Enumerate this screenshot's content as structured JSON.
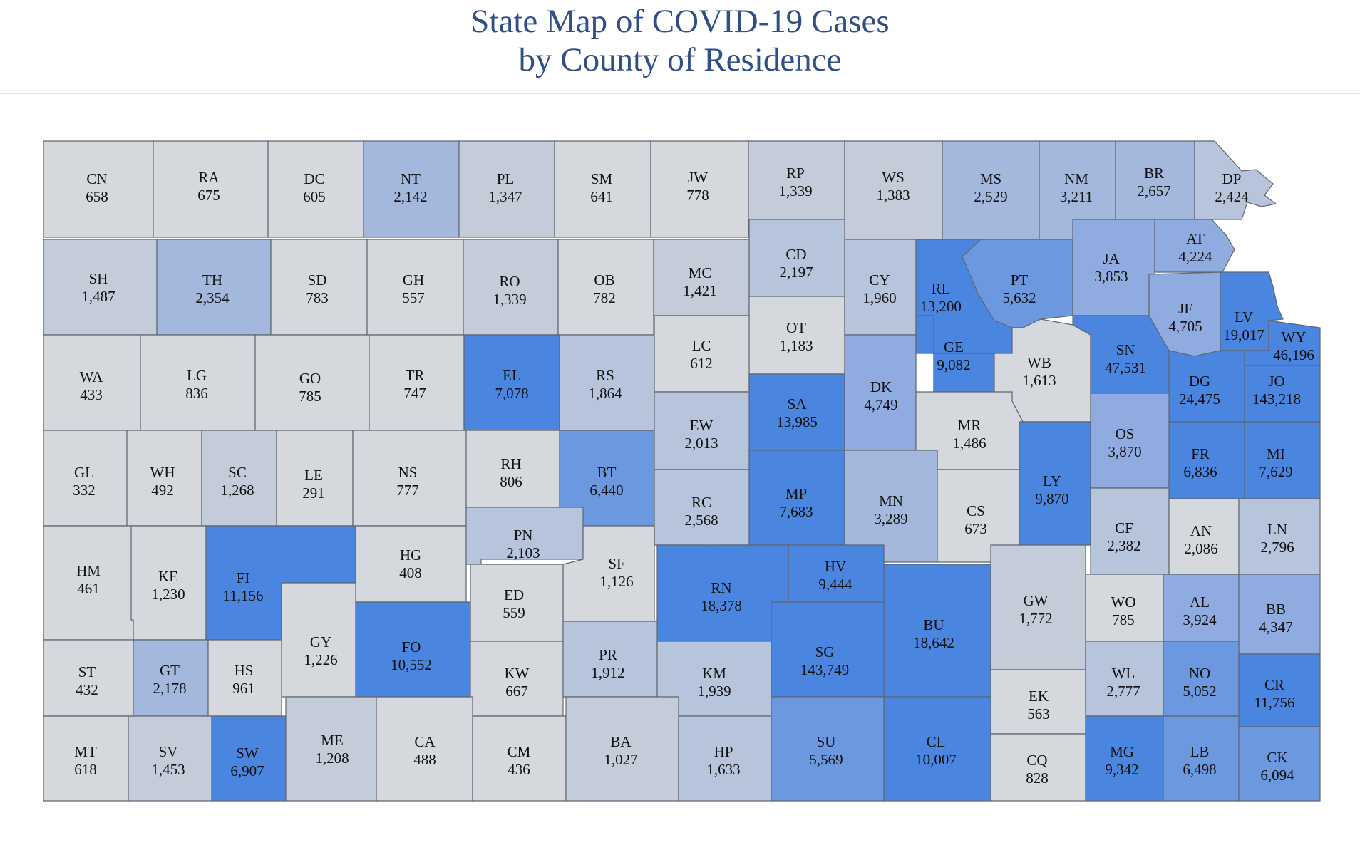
{
  "title": {
    "line1": "State Map of COVID-19 Cases",
    "line2": "by County of Residence"
  },
  "palette": {
    "lightest": "#d5d8dd",
    "light": "#c5ccd9",
    "pale_blue": "#b6c4dc",
    "soft_blue": "#a3b8dc",
    "mid_blue": "#8fabe0",
    "strong_blue": "#6c98df",
    "deep_blue": "#4a85e0",
    "border": "#5f6670"
  },
  "counties": [
    {
      "code": "CN",
      "value": "658",
      "shade": "lightest"
    },
    {
      "code": "RA",
      "value": "675",
      "shade": "lightest"
    },
    {
      "code": "DC",
      "value": "605",
      "shade": "lightest"
    },
    {
      "code": "NT",
      "value": "2,142",
      "shade": "soft_blue"
    },
    {
      "code": "PL",
      "value": "1,347",
      "shade": "light"
    },
    {
      "code": "SM",
      "value": "641",
      "shade": "lightest"
    },
    {
      "code": "JW",
      "value": "778",
      "shade": "lightest"
    },
    {
      "code": "RP",
      "value": "1,339",
      "shade": "light"
    },
    {
      "code": "WS",
      "value": "1,383",
      "shade": "light"
    },
    {
      "code": "MS",
      "value": "2,529",
      "shade": "soft_blue"
    },
    {
      "code": "NM",
      "value": "3,211",
      "shade": "soft_blue"
    },
    {
      "code": "BR",
      "value": "2,657",
      "shade": "soft_blue"
    },
    {
      "code": "DP",
      "value": "2,424",
      "shade": "pale_blue"
    },
    {
      "code": "SH",
      "value": "1,487",
      "shade": "light"
    },
    {
      "code": "TH",
      "value": "2,354",
      "shade": "soft_blue"
    },
    {
      "code": "SD",
      "value": "783",
      "shade": "lightest"
    },
    {
      "code": "GH",
      "value": "557",
      "shade": "lightest"
    },
    {
      "code": "RO",
      "value": "1,339",
      "shade": "light"
    },
    {
      "code": "OB",
      "value": "782",
      "shade": "lightest"
    },
    {
      "code": "MC",
      "value": "1,421",
      "shade": "light"
    },
    {
      "code": "CD",
      "value": "2,197",
      "shade": "pale_blue"
    },
    {
      "code": "OT",
      "value": "1,183",
      "shade": "lightest"
    },
    {
      "code": "CY",
      "value": "1,960",
      "shade": "pale_blue"
    },
    {
      "code": "RL",
      "value": "13,200",
      "shade": "deep_blue"
    },
    {
      "code": "PT",
      "value": "5,632",
      "shade": "strong_blue"
    },
    {
      "code": "JA",
      "value": "3,853",
      "shade": "mid_blue"
    },
    {
      "code": "AT",
      "value": "4,224",
      "shade": "mid_blue"
    },
    {
      "code": "JF",
      "value": "4,705",
      "shade": "mid_blue"
    },
    {
      "code": "LV",
      "value": "19,017",
      "shade": "deep_blue"
    },
    {
      "code": "WY",
      "value": "46,196",
      "shade": "deep_blue"
    },
    {
      "code": "WA",
      "value": "433",
      "shade": "lightest"
    },
    {
      "code": "LG",
      "value": "836",
      "shade": "lightest"
    },
    {
      "code": "GO",
      "value": "785",
      "shade": "lightest"
    },
    {
      "code": "TR",
      "value": "747",
      "shade": "lightest"
    },
    {
      "code": "EL",
      "value": "7,078",
      "shade": "deep_blue"
    },
    {
      "code": "RS",
      "value": "1,864",
      "shade": "pale_blue"
    },
    {
      "code": "LC",
      "value": "612",
      "shade": "lightest"
    },
    {
      "code": "SA",
      "value": "13,985",
      "shade": "deep_blue"
    },
    {
      "code": "DK",
      "value": "4,749",
      "shade": "mid_blue"
    },
    {
      "code": "GE",
      "value": "9,082",
      "shade": "deep_blue"
    },
    {
      "code": "WB",
      "value": "1,613",
      "shade": "lightest"
    },
    {
      "code": "SN",
      "value": "47,531",
      "shade": "deep_blue"
    },
    {
      "code": "DG",
      "value": "24,475",
      "shade": "deep_blue"
    },
    {
      "code": "JO",
      "value": "143,218",
      "shade": "deep_blue"
    },
    {
      "code": "GL",
      "value": "332",
      "shade": "lightest"
    },
    {
      "code": "WH",
      "value": "492",
      "shade": "lightest"
    },
    {
      "code": "SC",
      "value": "1,268",
      "shade": "light"
    },
    {
      "code": "LE",
      "value": "291",
      "shade": "lightest"
    },
    {
      "code": "NS",
      "value": "777",
      "shade": "lightest"
    },
    {
      "code": "RH",
      "value": "806",
      "shade": "lightest"
    },
    {
      "code": "BT",
      "value": "6,440",
      "shade": "strong_blue"
    },
    {
      "code": "EW",
      "value": "2,013",
      "shade": "pale_blue"
    },
    {
      "code": "MR",
      "value": "1,486",
      "shade": "lightest"
    },
    {
      "code": "OS",
      "value": "3,870",
      "shade": "mid_blue"
    },
    {
      "code": "FR",
      "value": "6,836",
      "shade": "deep_blue"
    },
    {
      "code": "MI",
      "value": "7,629",
      "shade": "deep_blue"
    },
    {
      "code": "RC",
      "value": "2,568",
      "shade": "pale_blue"
    },
    {
      "code": "MP",
      "value": "7,683",
      "shade": "deep_blue"
    },
    {
      "code": "MN",
      "value": "3,289",
      "shade": "soft_blue"
    },
    {
      "code": "CS",
      "value": "673",
      "shade": "lightest"
    },
    {
      "code": "LY",
      "value": "9,870",
      "shade": "deep_blue"
    },
    {
      "code": "CF",
      "value": "2,382",
      "shade": "pale_blue"
    },
    {
      "code": "AN",
      "value": "2,086",
      "shade": "lightest"
    },
    {
      "code": "LN",
      "value": "2,796",
      "shade": "pale_blue"
    },
    {
      "code": "HM",
      "value": "461",
      "shade": "lightest"
    },
    {
      "code": "KE",
      "value": "1,230",
      "shade": "lightest"
    },
    {
      "code": "FI",
      "value": "11,156",
      "shade": "deep_blue"
    },
    {
      "code": "HG",
      "value": "408",
      "shade": "lightest"
    },
    {
      "code": "PN",
      "value": "2,103",
      "shade": "pale_blue"
    },
    {
      "code": "SF",
      "value": "1,126",
      "shade": "lightest"
    },
    {
      "code": "ED",
      "value": "559",
      "shade": "lightest"
    },
    {
      "code": "RN",
      "value": "18,378",
      "shade": "deep_blue"
    },
    {
      "code": "HV",
      "value": "9,444",
      "shade": "deep_blue"
    },
    {
      "code": "BU",
      "value": "18,642",
      "shade": "deep_blue"
    },
    {
      "code": "GW",
      "value": "1,772",
      "shade": "light"
    },
    {
      "code": "WO",
      "value": "785",
      "shade": "lightest"
    },
    {
      "code": "AL",
      "value": "3,924",
      "shade": "mid_blue"
    },
    {
      "code": "BB",
      "value": "4,347",
      "shade": "mid_blue"
    },
    {
      "code": "GY",
      "value": "1,226",
      "shade": "lightest"
    },
    {
      "code": "FO",
      "value": "10,552",
      "shade": "deep_blue"
    },
    {
      "code": "SG",
      "value": "143,749",
      "shade": "deep_blue"
    },
    {
      "code": "ST",
      "value": "432",
      "shade": "lightest"
    },
    {
      "code": "GT",
      "value": "2,178",
      "shade": "soft_blue"
    },
    {
      "code": "HS",
      "value": "961",
      "shade": "lightest"
    },
    {
      "code": "KW",
      "value": "667",
      "shade": "lightest"
    },
    {
      "code": "PR",
      "value": "1,912",
      "shade": "pale_blue"
    },
    {
      "code": "KM",
      "value": "1,939",
      "shade": "pale_blue"
    },
    {
      "code": "EK",
      "value": "563",
      "shade": "lightest"
    },
    {
      "code": "WL",
      "value": "2,777",
      "shade": "pale_blue"
    },
    {
      "code": "NO",
      "value": "5,052",
      "shade": "strong_blue"
    },
    {
      "code": "CR",
      "value": "11,756",
      "shade": "deep_blue"
    },
    {
      "code": "MT",
      "value": "618",
      "shade": "lightest"
    },
    {
      "code": "SV",
      "value": "1,453",
      "shade": "light"
    },
    {
      "code": "SW",
      "value": "6,907",
      "shade": "deep_blue"
    },
    {
      "code": "ME",
      "value": "1,208",
      "shade": "light"
    },
    {
      "code": "CA",
      "value": "488",
      "shade": "lightest"
    },
    {
      "code": "CM",
      "value": "436",
      "shade": "lightest"
    },
    {
      "code": "BA",
      "value": "1,027",
      "shade": "light"
    },
    {
      "code": "HP",
      "value": "1,633",
      "shade": "pale_blue"
    },
    {
      "code": "SU",
      "value": "5,569",
      "shade": "strong_blue"
    },
    {
      "code": "CL",
      "value": "10,007",
      "shade": "deep_blue"
    },
    {
      "code": "CQ",
      "value": "828",
      "shade": "lightest"
    },
    {
      "code": "MG",
      "value": "9,342",
      "shade": "deep_blue"
    },
    {
      "code": "LB",
      "value": "6,498",
      "shade": "strong_blue"
    },
    {
      "code": "CK",
      "value": "6,094",
      "shade": "strong_blue"
    }
  ]
}
